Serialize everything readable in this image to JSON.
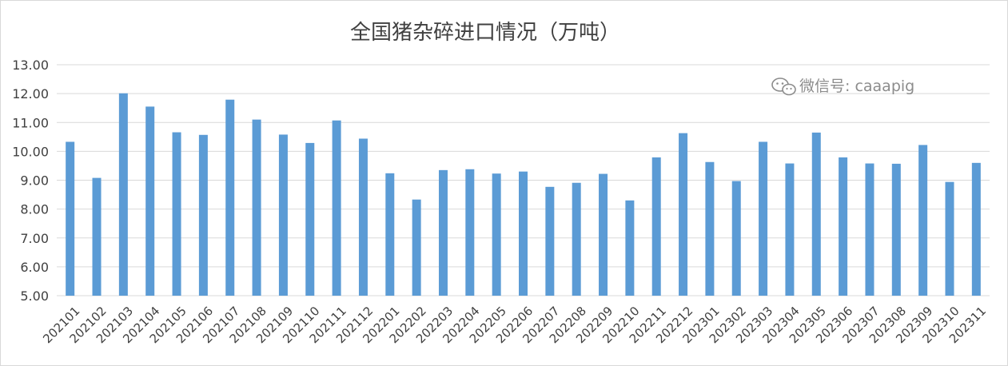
{
  "chart_data": {
    "type": "bar",
    "title": "全国猪杂碎进口情况（万吨）",
    "xlabel": "",
    "ylabel": "",
    "ylim": [
      5.0,
      13.0
    ],
    "yticks": [
      "5.00",
      "6.00",
      "7.00",
      "8.00",
      "9.00",
      "10.00",
      "11.00",
      "12.00",
      "13.00"
    ],
    "grid": true,
    "legend": "none",
    "categories": [
      "202101",
      "202102",
      "202103",
      "202104",
      "202105",
      "202106",
      "202107",
      "202108",
      "202109",
      "202110",
      "202111",
      "202112",
      "202201",
      "202202",
      "202203",
      "202204",
      "202205",
      "202206",
      "202207",
      "202208",
      "202209",
      "202210",
      "202211",
      "202212",
      "202301",
      "202302",
      "202303",
      "202304",
      "202305",
      "202306",
      "202307",
      "202308",
      "202309",
      "202310",
      "202311"
    ],
    "values": [
      10.33,
      9.08,
      12.01,
      11.55,
      10.66,
      10.57,
      11.79,
      11.1,
      10.58,
      10.29,
      11.07,
      10.44,
      9.24,
      8.33,
      9.35,
      9.38,
      9.23,
      9.3,
      8.77,
      8.91,
      9.22,
      8.3,
      9.79,
      10.63,
      9.63,
      8.97,
      10.33,
      9.58,
      10.65,
      9.79,
      9.58,
      9.57,
      10.22,
      8.94,
      9.6
    ],
    "bar_color": "#5b9bd5"
  },
  "watermark": {
    "text": "微信号: caaapig",
    "icon": "wechat-icon"
  }
}
